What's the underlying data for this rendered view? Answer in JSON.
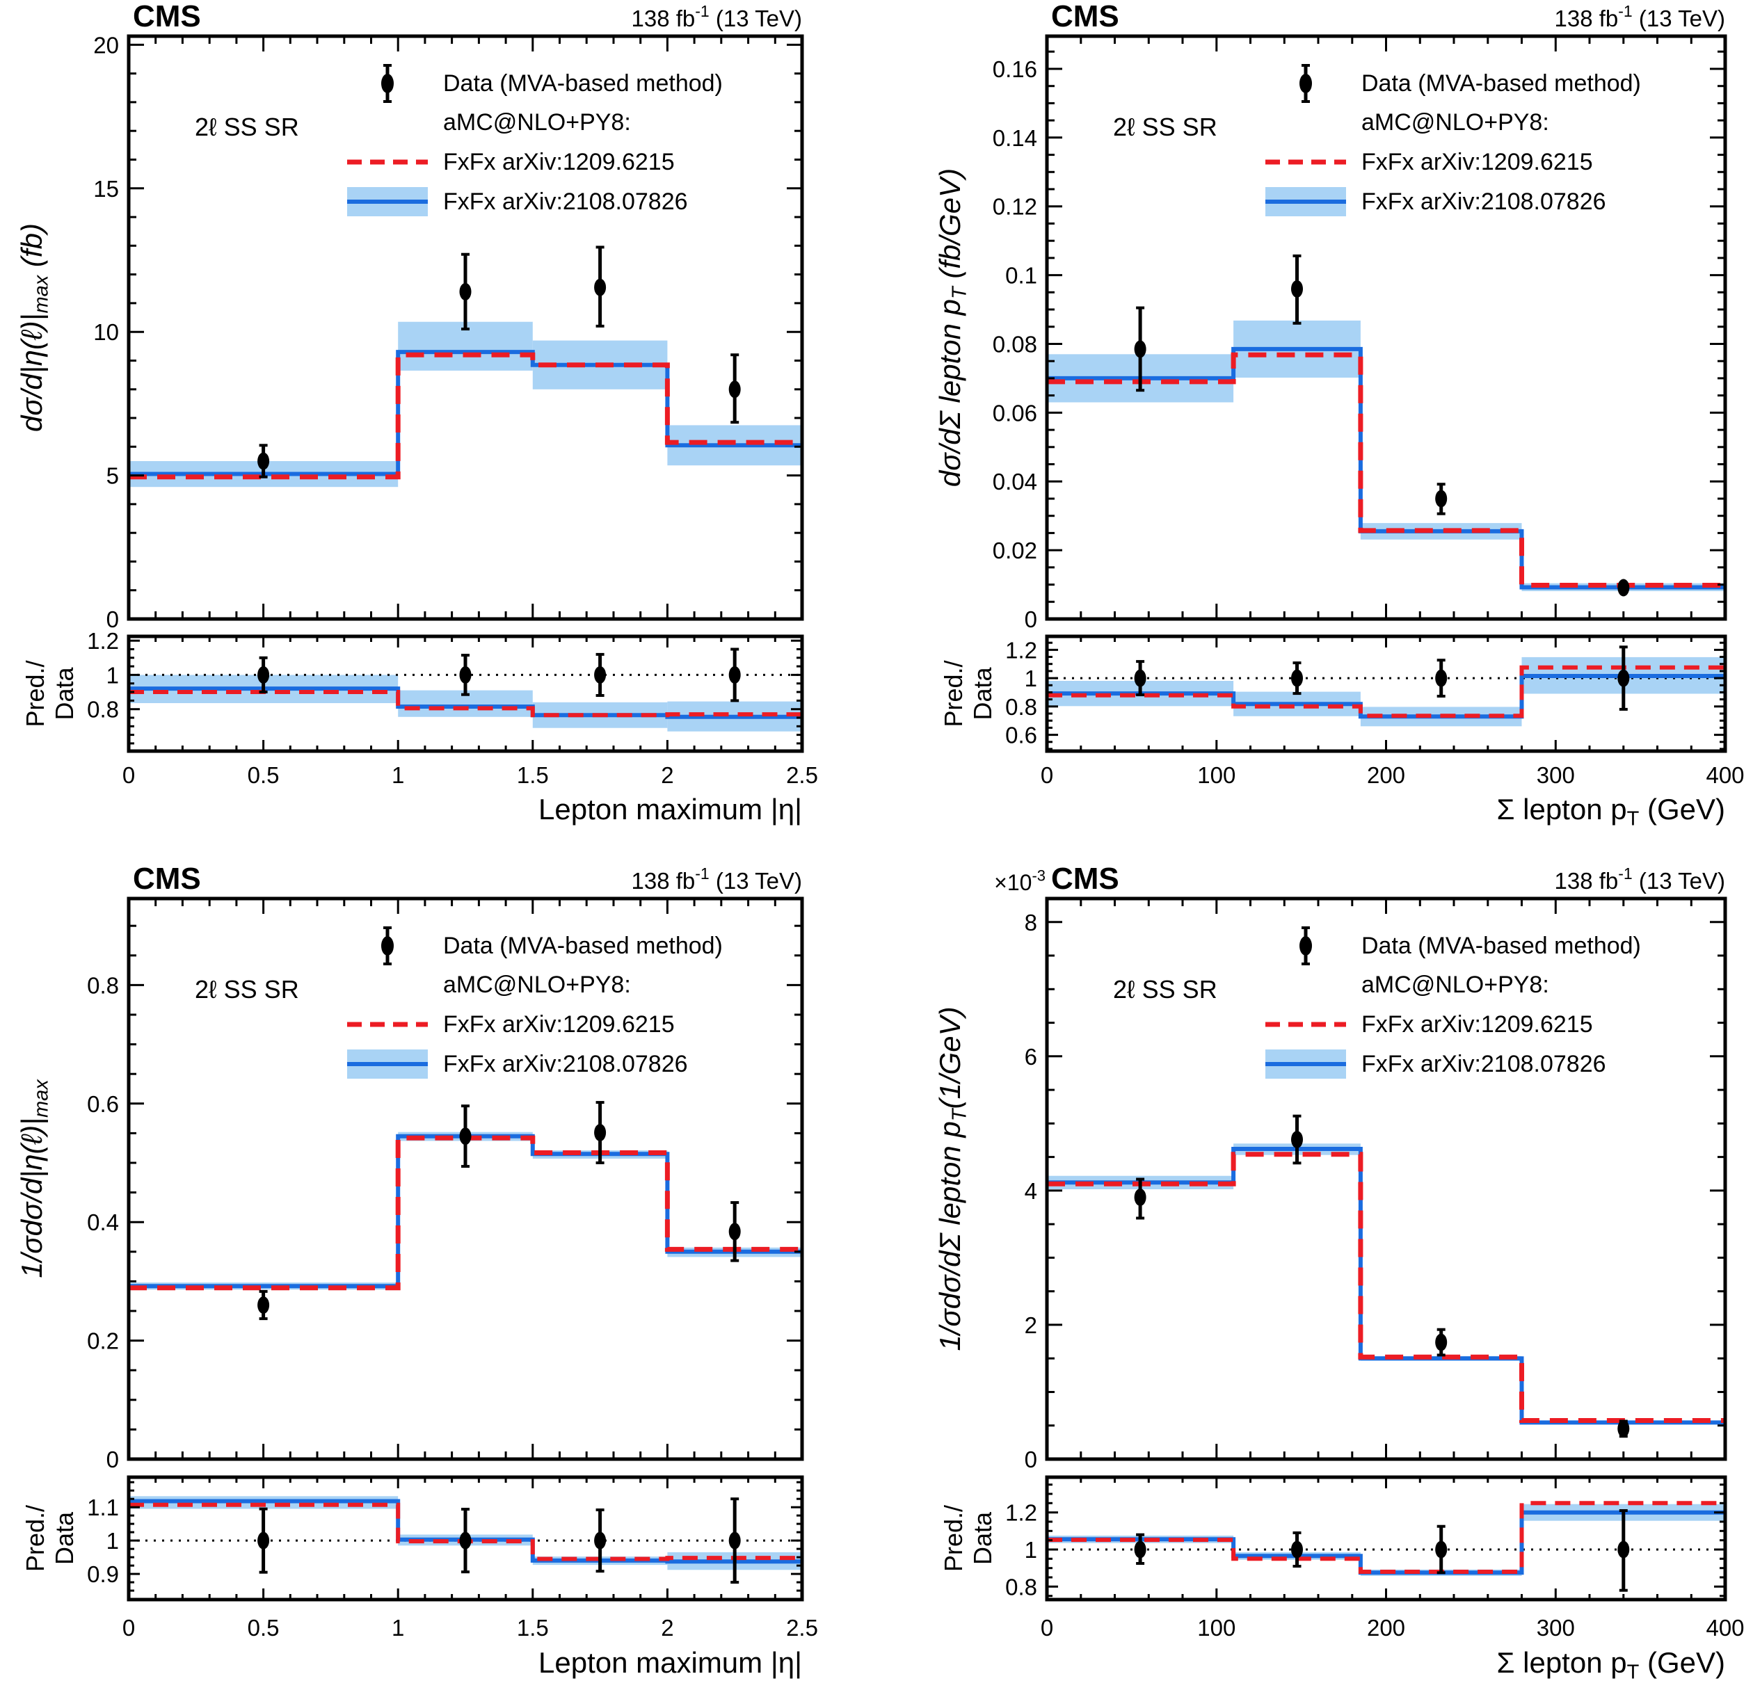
{
  "ui": {
    "header": {
      "experiment": "CMS",
      "lumi": [
        {
          "t": "138 fb"
        },
        {
          "t": "-1",
          "sup": true
        },
        {
          "t": " (13 TeV)"
        }
      ]
    },
    "region_label": "2ℓ SS SR",
    "legend": {
      "data_label": "Data (MVA-based method)",
      "generator_label": "aMC@NLO+PY8:",
      "fxfx_old_label": "FxFx arXiv:1209.6215",
      "fxfx_new_label": "FxFx arXiv:2108.07826"
    },
    "ratio_ylabel": {
      "line1": "Pred./",
      "line2": "Data"
    },
    "colors": {
      "red": "#ec1c24",
      "blue": "#1a6cdf",
      "band": "#a9d3f5",
      "black": "#000000"
    }
  },
  "chart_data": [
    {
      "position": "top-left",
      "type": "line",
      "style": "step-histogram-with-uncertainty-band-and-ratio",
      "title": "",
      "xlabel": [
        {
          "t": "Lepton maximum |η|"
        }
      ],
      "ylabel": [
        {
          "t": "dσ/d|η(ℓ)|"
        },
        {
          "t": "max",
          "sub": true
        },
        {
          "t": " (fb)"
        }
      ],
      "scale_label": null,
      "xlim": [
        0,
        2.5
      ],
      "xticks": [
        [
          0,
          "0"
        ],
        [
          0.5,
          "0.5"
        ],
        [
          1,
          "1"
        ],
        [
          1.5,
          "1.5"
        ],
        [
          2,
          "2"
        ],
        [
          2.5,
          "2.5"
        ]
      ],
      "xminor": 0.1,
      "ylim": [
        0,
        20.3
      ],
      "yticks": [
        [
          0,
          "0"
        ],
        [
          5,
          "5"
        ],
        [
          10,
          "10"
        ],
        [
          15,
          "15"
        ],
        [
          20,
          "20"
        ]
      ],
      "yminor": 1,
      "bin_edges": [
        0,
        1,
        1.5,
        2,
        2.5
      ],
      "series": [
        {
          "name": "FxFx arXiv:1209.6215",
          "color": "red",
          "line": "dashed",
          "values": [
            4.95,
            9.2,
            8.85,
            6.15
          ]
        },
        {
          "name": "FxFx arXiv:2108.07826",
          "color": "blue",
          "line": "solid",
          "values": [
            5.05,
            9.3,
            8.85,
            6.05
          ],
          "band_lo": [
            4.6,
            8.65,
            8.0,
            5.35
          ],
          "band_hi": [
            5.5,
            10.35,
            9.7,
            6.75
          ]
        }
      ],
      "data_points": {
        "x": [
          0.5,
          1.25,
          1.75,
          2.25
        ],
        "y": [
          5.5,
          11.4,
          11.55,
          8.0
        ],
        "y_lo": [
          4.95,
          10.1,
          10.2,
          6.85
        ],
        "y_hi": [
          6.05,
          12.7,
          12.95,
          9.2
        ]
      },
      "ratio": {
        "ylim": [
          0.555,
          1.225
        ],
        "yticks": [
          [
            0.8,
            "0.8"
          ],
          [
            1,
            "1"
          ],
          [
            1.2,
            "1.2"
          ]
        ],
        "yminor": 0.05,
        "red": [
          0.9,
          0.805,
          0.765,
          0.77
        ],
        "blue": [
          0.92,
          0.815,
          0.765,
          0.755
        ],
        "band_lo": [
          0.835,
          0.755,
          0.69,
          0.67
        ],
        "band_hi": [
          1.0,
          0.91,
          0.84,
          0.845
        ],
        "points": {
          "x": [
            0.5,
            1.25,
            1.75,
            2.25
          ],
          "y": [
            1,
            1,
            1,
            1
          ],
          "y_lo": [
            0.9,
            0.885,
            0.88,
            0.85
          ],
          "y_hi": [
            1.1,
            1.115,
            1.12,
            1.15
          ]
        }
      }
    },
    {
      "position": "top-right",
      "type": "line",
      "style": "step-histogram-with-uncertainty-band-and-ratio",
      "title": "",
      "xlabel": [
        {
          "t": "Σ lepton p"
        },
        {
          "t": "T",
          "sub": true
        },
        {
          "t": " (GeV)"
        }
      ],
      "ylabel": [
        {
          "t": "dσ/dΣ lepton p"
        },
        {
          "t": "T",
          "sub": true
        },
        {
          "t": " (fb/GeV)"
        }
      ],
      "scale_label": null,
      "xlim": [
        0,
        400
      ],
      "xticks": [
        [
          0,
          "0"
        ],
        [
          100,
          "100"
        ],
        [
          200,
          "200"
        ],
        [
          300,
          "300"
        ],
        [
          400,
          "400"
        ]
      ],
      "xminor": 20,
      "ylim": [
        0,
        0.1695
      ],
      "yticks": [
        [
          0,
          "0"
        ],
        [
          0.02,
          "0.02"
        ],
        [
          0.04,
          "0.04"
        ],
        [
          0.06,
          "0.06"
        ],
        [
          0.08,
          "0.08"
        ],
        [
          0.1,
          "0.1"
        ],
        [
          0.12,
          "0.12"
        ],
        [
          0.14,
          "0.14"
        ],
        [
          0.16,
          "0.16"
        ]
      ],
      "yminor": 0.005,
      "bin_edges": [
        0,
        110,
        185,
        280,
        400
      ],
      "series": [
        {
          "name": "FxFx arXiv:1209.6215",
          "color": "red",
          "line": "dashed",
          "values": [
            0.069,
            0.0768,
            0.0257,
            0.0098
          ]
        },
        {
          "name": "FxFx arXiv:2108.07826",
          "color": "blue",
          "line": "solid",
          "values": [
            0.07,
            0.0785,
            0.0255,
            0.0092
          ],
          "band_lo": [
            0.063,
            0.0702,
            0.0231,
            0.0081
          ],
          "band_hi": [
            0.077,
            0.0868,
            0.0279,
            0.0104
          ]
        }
      ],
      "data_points": {
        "x": [
          55,
          147.5,
          232.5,
          340
        ],
        "y": [
          0.0785,
          0.096,
          0.035,
          0.0091
        ],
        "y_lo": [
          0.0665,
          0.086,
          0.0306,
          0.0079
        ],
        "y_hi": [
          0.0905,
          0.1056,
          0.0392,
          0.0104
        ]
      },
      "ratio": {
        "ylim": [
          0.485,
          1.295
        ],
        "yticks": [
          [
            0.6,
            "0.6"
          ],
          [
            0.8,
            "0.8"
          ],
          [
            1,
            "1"
          ],
          [
            1.2,
            "1.2"
          ]
        ],
        "yminor": 0.05,
        "red": [
          0.879,
          0.8,
          0.734,
          1.075
        ],
        "blue": [
          0.892,
          0.818,
          0.729,
          1.015
        ],
        "band_lo": [
          0.803,
          0.731,
          0.66,
          0.89
        ],
        "band_hi": [
          0.981,
          0.904,
          0.797,
          1.148
        ],
        "points": {
          "x": [
            55,
            147.5,
            232.5,
            340
          ],
          "y": [
            1,
            1,
            1,
            1
          ],
          "y_lo": [
            0.882,
            0.892,
            0.873,
            0.78
          ],
          "y_hi": [
            1.118,
            1.108,
            1.127,
            1.22
          ]
        }
      }
    },
    {
      "position": "bottom-left",
      "type": "line",
      "style": "step-histogram-with-uncertainty-band-and-ratio",
      "title": "",
      "xlabel": [
        {
          "t": "Lepton maximum |η|"
        }
      ],
      "ylabel": [
        {
          "t": "1/σdσ/d|η(ℓ)|"
        },
        {
          "t": "max",
          "sub": true
        }
      ],
      "scale_label": null,
      "xlim": [
        0,
        2.5
      ],
      "xticks": [
        [
          0,
          "0"
        ],
        [
          0.5,
          "0.5"
        ],
        [
          1,
          "1"
        ],
        [
          1.5,
          "1.5"
        ],
        [
          2,
          "2"
        ],
        [
          2.5,
          "2.5"
        ]
      ],
      "xminor": 0.1,
      "ylim": [
        0,
        0.946
      ],
      "yticks": [
        [
          0,
          "0"
        ],
        [
          0.2,
          "0.2"
        ],
        [
          0.4,
          "0.4"
        ],
        [
          0.6,
          "0.6"
        ],
        [
          0.8,
          "0.8"
        ]
      ],
      "yminor": 0.05,
      "bin_edges": [
        0,
        1,
        1.5,
        2,
        2.5
      ],
      "series": [
        {
          "name": "FxFx arXiv:1209.6215",
          "color": "red",
          "line": "dashed",
          "values": [
            0.289,
            0.542,
            0.517,
            0.354
          ]
        },
        {
          "name": "FxFx arXiv:2108.07826",
          "color": "blue",
          "line": "solid",
          "values": [
            0.292,
            0.545,
            0.515,
            0.35
          ],
          "band_lo": [
            0.286,
            0.537,
            0.507,
            0.341
          ],
          "band_hi": [
            0.298,
            0.552,
            0.521,
            0.357
          ]
        }
      ],
      "data_points": {
        "x": [
          0.5,
          1.25,
          1.75,
          2.25
        ],
        "y": [
          0.26,
          0.545,
          0.551,
          0.384
        ],
        "y_lo": [
          0.237,
          0.494,
          0.5,
          0.335
        ],
        "y_hi": [
          0.283,
          0.596,
          0.602,
          0.433
        ]
      },
      "ratio": {
        "ylim": [
          0.823,
          1.19
        ],
        "yticks": [
          [
            0.9,
            "0.9"
          ],
          [
            1,
            "1"
          ],
          [
            1.1,
            "1.1"
          ]
        ],
        "yminor": 0.025,
        "red": [
          1.107,
          0.998,
          0.945,
          0.948
        ],
        "blue": [
          1.118,
          1.003,
          0.94,
          0.937
        ],
        "band_lo": [
          1.095,
          0.985,
          0.927,
          0.912
        ],
        "band_hi": [
          1.133,
          1.018,
          0.952,
          0.965
        ],
        "points": {
          "x": [
            0.5,
            1.25,
            1.75,
            2.25
          ],
          "y": [
            1,
            1,
            1,
            1
          ],
          "y_lo": [
            0.905,
            0.906,
            0.908,
            0.875
          ],
          "y_hi": [
            1.095,
            1.094,
            1.092,
            1.125
          ]
        }
      }
    },
    {
      "position": "bottom-right",
      "type": "line",
      "style": "step-histogram-with-uncertainty-band-and-ratio",
      "title": "",
      "xlabel": [
        {
          "t": "Σ lepton p"
        },
        {
          "t": "T",
          "sub": true
        },
        {
          "t": " (GeV)"
        }
      ],
      "ylabel": [
        {
          "t": "1/σdσ/dΣ lepton p"
        },
        {
          "t": "T",
          "sub": true
        },
        {
          "t": "(1/GeV)"
        }
      ],
      "scale_label": [
        {
          "t": "×10"
        },
        {
          "t": "-3",
          "sup": true
        }
      ],
      "xlim": [
        0,
        400
      ],
      "xticks": [
        [
          0,
          "0"
        ],
        [
          100,
          "100"
        ],
        [
          200,
          "200"
        ],
        [
          300,
          "300"
        ],
        [
          400,
          "400"
        ]
      ],
      "xminor": 20,
      "ylim": [
        0,
        8.35
      ],
      "yticks": [
        [
          0,
          "0"
        ],
        [
          2,
          "2"
        ],
        [
          4,
          "4"
        ],
        [
          6,
          "6"
        ],
        [
          8,
          "8"
        ]
      ],
      "yminor": 0.5,
      "bin_edges": [
        0,
        110,
        185,
        280,
        400
      ],
      "series": [
        {
          "name": "FxFx arXiv:1209.6215",
          "color": "red",
          "line": "dashed",
          "values": [
            4.1,
            4.54,
            1.52,
            0.575
          ]
        },
        {
          "name": "FxFx arXiv:2108.07826",
          "color": "blue",
          "line": "solid",
          "values": [
            4.12,
            4.62,
            1.5,
            0.545
          ],
          "band_lo": [
            4.02,
            4.53,
            1.465,
            0.525
          ],
          "band_hi": [
            4.22,
            4.7,
            1.535,
            0.565
          ]
        }
      ],
      "data_points": {
        "x": [
          55,
          147.5,
          232.5,
          340
        ],
        "y": [
          3.9,
          4.76,
          1.74,
          0.455
        ],
        "y_lo": [
          3.59,
          4.41,
          1.55,
          0.34
        ],
        "y_hi": [
          4.17,
          5.11,
          1.93,
          0.565
        ]
      },
      "ratio": {
        "ylim": [
          0.73,
          1.39
        ],
        "yticks": [
          [
            0.8,
            "0.8"
          ],
          [
            1,
            "1"
          ],
          [
            1.2,
            "1.2"
          ]
        ],
        "yminor": 0.05,
        "red": [
          1.052,
          0.95,
          0.88,
          1.25
        ],
        "blue": [
          1.055,
          0.965,
          0.875,
          1.2
        ],
        "band_lo": [
          1.035,
          0.945,
          0.858,
          1.155
        ],
        "band_hi": [
          1.075,
          0.985,
          0.892,
          1.245
        ],
        "points": {
          "x": [
            55,
            147.5,
            232.5,
            340
          ],
          "y": [
            1,
            1,
            1,
            1
          ],
          "y_lo": [
            0.925,
            0.91,
            0.875,
            0.78
          ],
          "y_hi": [
            1.08,
            1.09,
            1.125,
            1.21
          ]
        }
      }
    }
  ]
}
